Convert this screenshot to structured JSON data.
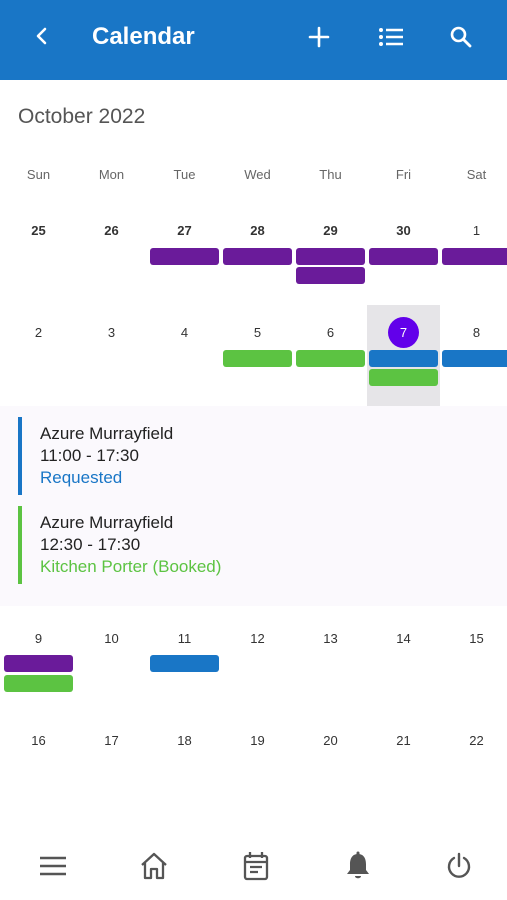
{
  "app_bar": {
    "title": "Calendar",
    "back_icon": "chevron-left-icon",
    "actions": [
      "plus-icon",
      "list-icon",
      "search-icon"
    ],
    "background": "#1976c6"
  },
  "calendar": {
    "month_label": "October 2022",
    "weekdays": [
      "Sun",
      "Mon",
      "Tue",
      "Wed",
      "Thu",
      "Fri",
      "Sat"
    ],
    "weeks": [
      [
        "25",
        "26",
        "27",
        "28",
        "29",
        "30",
        "1"
      ],
      [
        "2",
        "3",
        "4",
        "5",
        "6",
        "7",
        "8"
      ],
      [
        "9",
        "10",
        "11",
        "12",
        "13",
        "14",
        "15"
      ],
      [
        "16",
        "17",
        "18",
        "19",
        "20",
        "21",
        "22"
      ]
    ],
    "selected_day": "7",
    "colors": {
      "purple": "#6a1b9a",
      "green": "#5cc342",
      "blue": "#1976c6",
      "today": "#6200ea"
    }
  },
  "selected_day_events": [
    {
      "venue": "Azure Murrayfield",
      "time": "11:00 - 17:30",
      "status": "Requested",
      "color": "#1976c6"
    },
    {
      "venue": "Azure Murrayfield",
      "time": "12:30 - 17:30",
      "status": "Kitchen Porter (Booked)",
      "color": "#5cc342"
    }
  ],
  "bottom_nav": [
    "menu-icon",
    "home-icon",
    "calendar-list-icon",
    "bell-icon",
    "power-icon"
  ]
}
